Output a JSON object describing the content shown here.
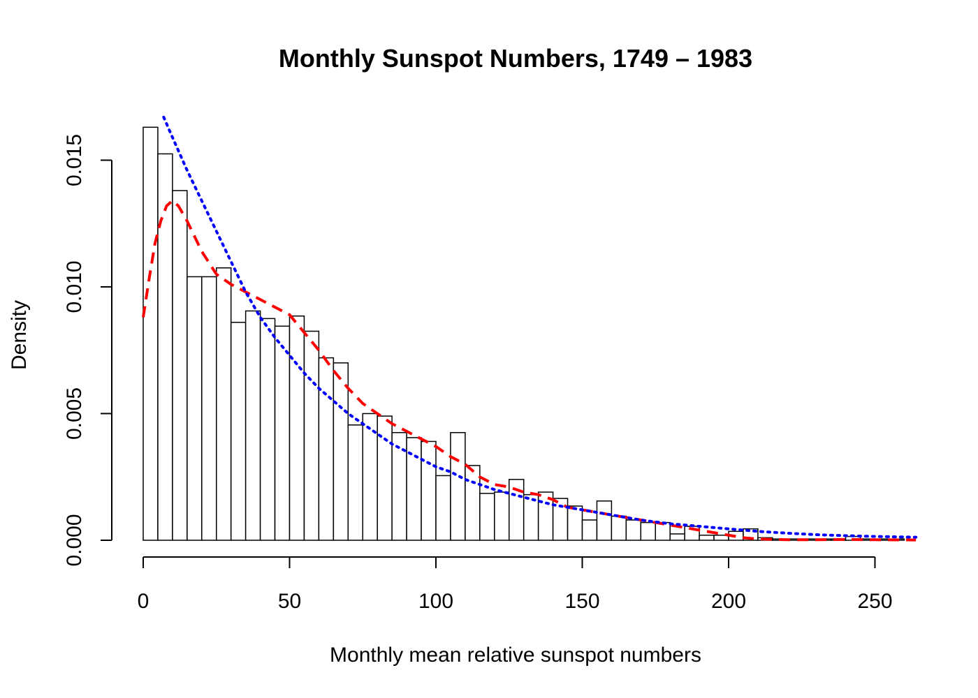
{
  "chart_data": {
    "type": "histogram",
    "title": "Monthly Sunspot Numbers, 1749 – 1983",
    "xlabel": "Monthly mean relative sunspot numbers",
    "ylabel": "Density",
    "xlim": [
      0,
      265
    ],
    "ylim": [
      0,
      0.0165
    ],
    "grid": false,
    "x_ticks": [
      {
        "value": 0,
        "label": "0"
      },
      {
        "value": 50,
        "label": "50"
      },
      {
        "value": 100,
        "label": "100"
      },
      {
        "value": 150,
        "label": "150"
      },
      {
        "value": 200,
        "label": "200"
      },
      {
        "value": 250,
        "label": "250"
      }
    ],
    "y_ticks": [
      {
        "value": 0,
        "label": "0.000"
      },
      {
        "value": 0.005,
        "label": "0.005"
      },
      {
        "value": 0.01,
        "label": "0.010"
      },
      {
        "value": 0.015,
        "label": "0.015"
      }
    ],
    "bin_width": 5,
    "bins_start": 0,
    "densities": [
      0.0163,
      0.01525,
      0.0138,
      0.0104,
      0.0104,
      0.01075,
      0.0086,
      0.00905,
      0.00875,
      0.00845,
      0.00885,
      0.00825,
      0.0072,
      0.007,
      0.00455,
      0.005,
      0.0049,
      0.00425,
      0.00405,
      0.0039,
      0.00255,
      0.00425,
      0.00295,
      0.00185,
      0.0019,
      0.0024,
      0.0018,
      0.0019,
      0.00165,
      0.00135,
      0.0008,
      0.00155,
      0.00095,
      0.0008,
      0.0007,
      0.0007,
      0.00025,
      0.00055,
      0.0002,
      0.0002,
      0.00035,
      0.00045,
      0.0001,
      5e-05,
      5e-05,
      5e-05,
      5e-05,
      5e-05,
      0.00015,
      5e-05,
      5e-05,
      5e-05
    ],
    "series": [
      {
        "name": "",
        "style": "dashed",
        "color": "#ff0000",
        "points": [
          [
            0,
            0.0088
          ],
          [
            2,
            0.0103
          ],
          [
            4,
            0.0117
          ],
          [
            6,
            0.0126
          ],
          [
            8,
            0.0132
          ],
          [
            10,
            0.0134
          ],
          [
            12,
            0.0132
          ],
          [
            15,
            0.0126
          ],
          [
            20,
            0.0114
          ],
          [
            25,
            0.0105
          ],
          [
            30,
            0.0101
          ],
          [
            35,
            0.0098
          ],
          [
            40,
            0.0095
          ],
          [
            45,
            0.0092
          ],
          [
            50,
            0.0089
          ],
          [
            55,
            0.0082
          ],
          [
            60,
            0.0075
          ],
          [
            65,
            0.0067
          ],
          [
            70,
            0.006
          ],
          [
            75,
            0.0054
          ],
          [
            80,
            0.005
          ],
          [
            85,
            0.0046
          ],
          [
            90,
            0.0043
          ],
          [
            95,
            0.004
          ],
          [
            100,
            0.0037
          ],
          [
            105,
            0.0033
          ],
          [
            110,
            0.003
          ],
          [
            115,
            0.0025
          ],
          [
            120,
            0.0022
          ],
          [
            125,
            0.0021
          ],
          [
            130,
            0.0019
          ],
          [
            135,
            0.0018
          ],
          [
            140,
            0.0016
          ],
          [
            145,
            0.0013
          ],
          [
            150,
            0.0012
          ],
          [
            155,
            0.0011
          ],
          [
            160,
            0.001
          ],
          [
            165,
            0.0009
          ],
          [
            170,
            0.0008
          ],
          [
            175,
            0.0007
          ],
          [
            180,
            0.0006
          ],
          [
            185,
            0.0005
          ],
          [
            190,
            0.0004
          ],
          [
            195,
            0.0003
          ],
          [
            200,
            0.0002
          ],
          [
            205,
            0.0001
          ],
          [
            210,
            5e-05
          ],
          [
            220,
            2e-05
          ],
          [
            230,
            2e-05
          ],
          [
            240,
            3e-05
          ],
          [
            250,
            2e-05
          ],
          [
            264,
            1e-05
          ]
        ]
      },
      {
        "name": "",
        "style": "dotted",
        "color": "#0000ff",
        "points": [
          [
            7,
            0.0167
          ],
          [
            10,
            0.0159
          ],
          [
            15,
            0.0146
          ],
          [
            20,
            0.0134
          ],
          [
            25,
            0.0122
          ],
          [
            30,
            0.011
          ],
          [
            35,
            0.0098
          ],
          [
            40,
            0.0088
          ],
          [
            45,
            0.008
          ],
          [
            50,
            0.0073
          ],
          [
            55,
            0.0066
          ],
          [
            60,
            0.006
          ],
          [
            65,
            0.0055
          ],
          [
            70,
            0.005
          ],
          [
            75,
            0.0046
          ],
          [
            80,
            0.0042
          ],
          [
            85,
            0.0038
          ],
          [
            90,
            0.0035
          ],
          [
            95,
            0.0032
          ],
          [
            100,
            0.0029
          ],
          [
            105,
            0.0027
          ],
          [
            110,
            0.0024
          ],
          [
            115,
            0.0022
          ],
          [
            120,
            0.002
          ],
          [
            130,
            0.0017
          ],
          [
            140,
            0.0014
          ],
          [
            150,
            0.0012
          ],
          [
            160,
            0.001
          ],
          [
            170,
            0.0008
          ],
          [
            180,
            0.00065
          ],
          [
            190,
            0.00055
          ],
          [
            200,
            0.00045
          ],
          [
            210,
            0.00035
          ],
          [
            220,
            0.00028
          ],
          [
            230,
            0.00022
          ],
          [
            240,
            0.00018
          ],
          [
            250,
            0.00015
          ],
          [
            264,
            0.00012
          ]
        ]
      }
    ]
  }
}
